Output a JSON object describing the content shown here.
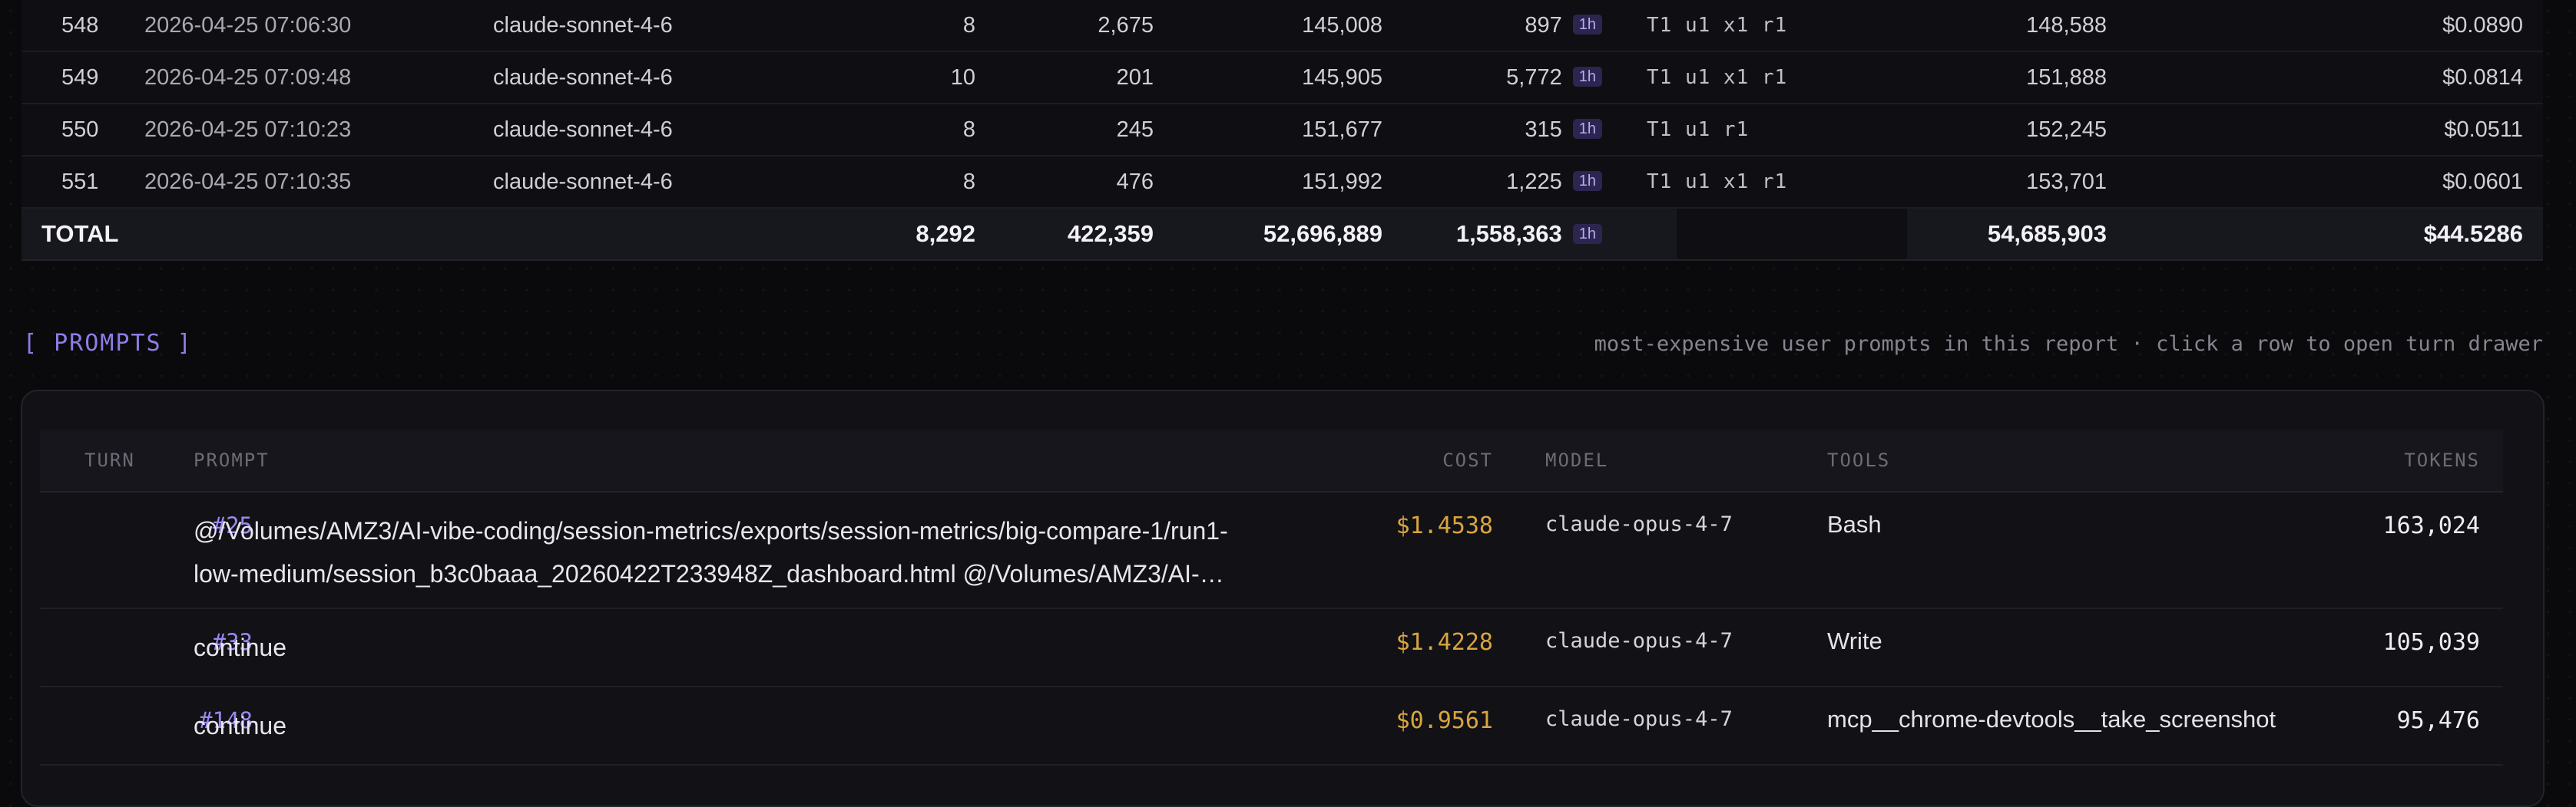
{
  "requests": {
    "rows": [
      {
        "idx": "548",
        "timestamp": "2026-04-25 07:06:30",
        "model": "claude-sonnet-4-6",
        "turns": "8",
        "input": "2,675",
        "cache_read": "145,008",
        "cache_write": "897",
        "badge": "1h",
        "tier": "T1 u1 x1 r1",
        "total": "148,588",
        "cost": "$0.0890"
      },
      {
        "idx": "549",
        "timestamp": "2026-04-25 07:09:48",
        "model": "claude-sonnet-4-6",
        "turns": "10",
        "input": "201",
        "cache_read": "145,905",
        "cache_write": "5,772",
        "badge": "1h",
        "tier": "T1 u1 x1 r1",
        "total": "151,888",
        "cost": "$0.0814"
      },
      {
        "idx": "550",
        "timestamp": "2026-04-25 07:10:23",
        "model": "claude-sonnet-4-6",
        "turns": "8",
        "input": "245",
        "cache_read": "151,677",
        "cache_write": "315",
        "badge": "1h",
        "tier": "T1 u1 r1",
        "total": "152,245",
        "cost": "$0.0511"
      },
      {
        "idx": "551",
        "timestamp": "2026-04-25 07:10:35",
        "model": "claude-sonnet-4-6",
        "turns": "8",
        "input": "476",
        "cache_read": "151,992",
        "cache_write": "1,225",
        "badge": "1h",
        "tier": "T1 u1 x1 r1",
        "total": "153,701",
        "cost": "$0.0601"
      }
    ],
    "total": {
      "label": "TOTAL",
      "turns": "8,292",
      "input": "422,359",
      "cache_read": "52,696,889",
      "cache_write": "1,558,363",
      "badge": "1h",
      "total": "54,685,903",
      "cost": "$44.5286"
    }
  },
  "prompts": {
    "title": "[ PROMPTS ]",
    "subtitle": "most-expensive user prompts in this report · click a row to open turn drawer",
    "headers": {
      "turn": "TURN",
      "prompt": "PROMPT",
      "cost": "COST",
      "model": "MODEL",
      "tools": "TOOLS",
      "tokens": "TOKENS"
    },
    "rows": [
      {
        "turn": "#25",
        "prompt_line1": "@/Volumes/AMZ3/AI-vibe-coding/session-metrics/exports/session-metrics/big-compare-1/run1-",
        "prompt_line2": "low-medium/session_b3c0baaa_20260422T233948Z_dashboard.html @/Volumes/AMZ3/AI-…",
        "cost": "$1.4538",
        "model": "claude-opus-4-7",
        "tools": "Bash",
        "tokens": "163,024"
      },
      {
        "turn": "#33",
        "prompt_line1": "continue",
        "cost": "$1.4228",
        "model": "claude-opus-4-7",
        "tools": "Write",
        "tokens": "105,039"
      },
      {
        "turn": "#148",
        "prompt_line1": "continue",
        "cost": "$0.9561",
        "model": "claude-opus-4-7",
        "tools": "mcp__chrome-devtools__take_screenshot",
        "tokens": "95,476"
      }
    ]
  }
}
